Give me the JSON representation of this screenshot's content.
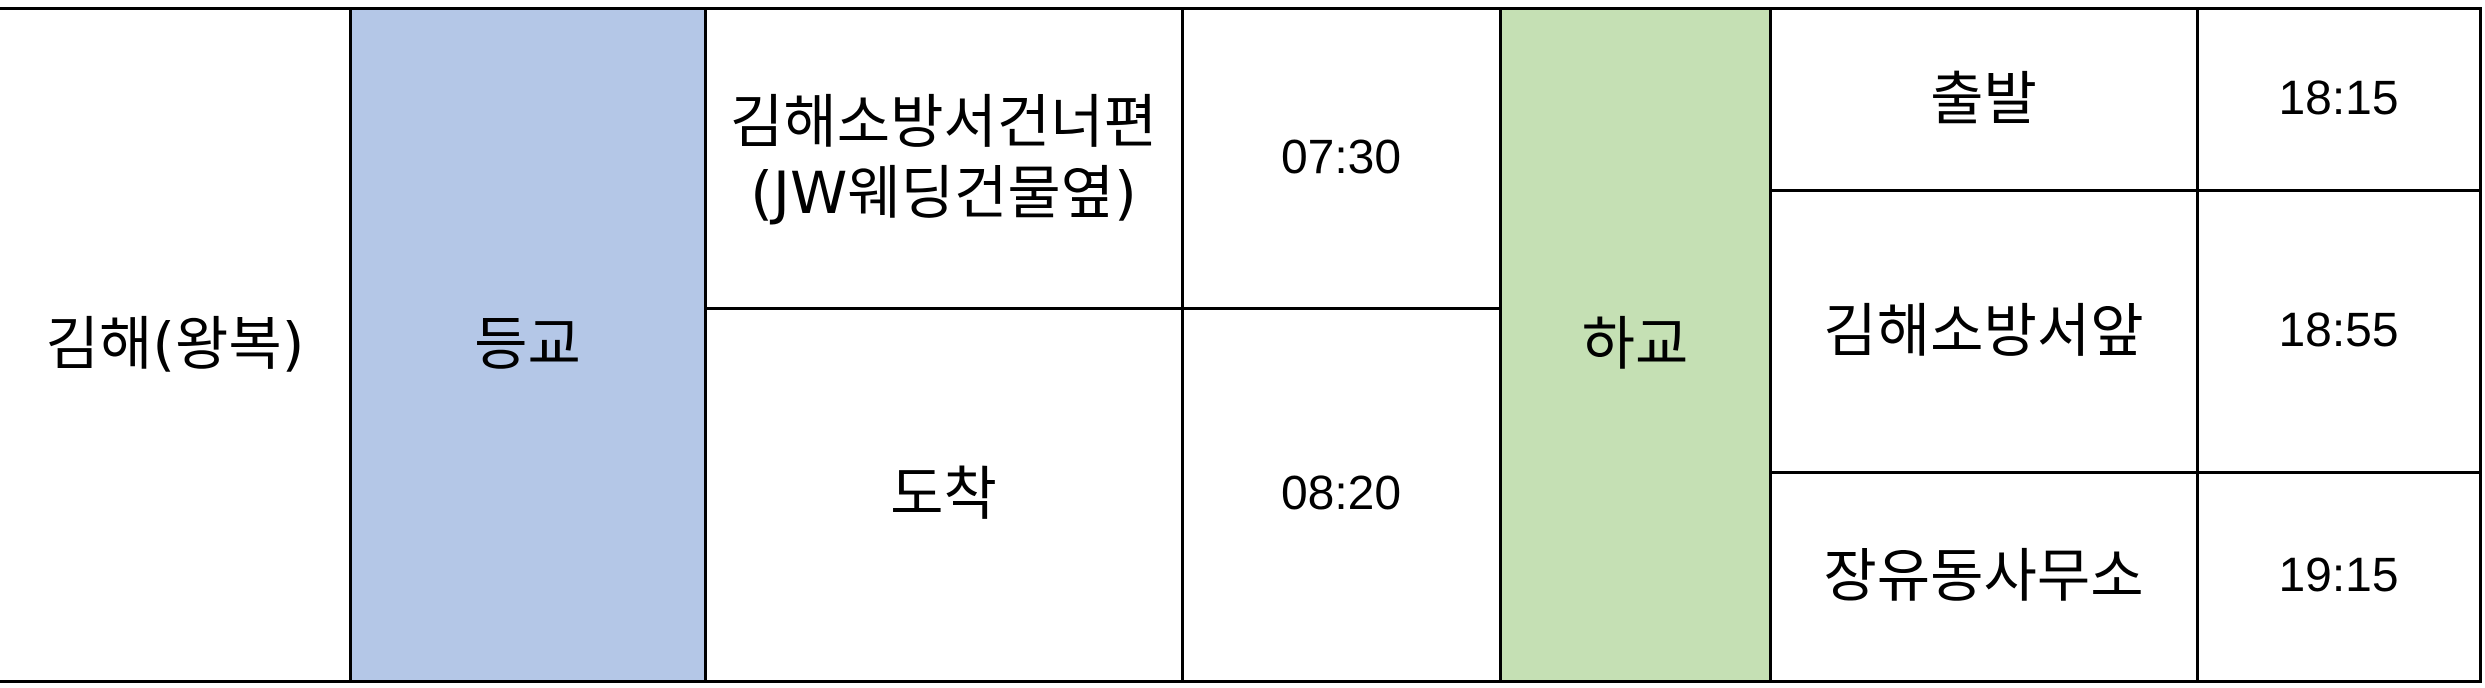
{
  "route": "김해(왕복)",
  "to_school": {
    "label": "등교",
    "color": "#b4c7e7",
    "stops": [
      {
        "line1": "김해소방서건너편",
        "line2": "(JW웨딩건물옆)",
        "time": "07:30"
      },
      {
        "name": "도착",
        "time": "08:20"
      }
    ]
  },
  "from_school": {
    "label": "하교",
    "color": "#c5e0b4",
    "stops": [
      {
        "name": "출발",
        "time": "18:15"
      },
      {
        "name": "김해소방서앞",
        "time": "18:55"
      },
      {
        "name": "장유동사무소",
        "time": "19:15"
      }
    ]
  }
}
